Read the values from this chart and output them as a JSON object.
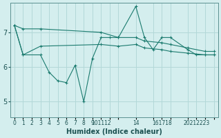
{
  "xlabel": "Humidex (Indice chaleur)",
  "bg_color": "#d4eeee",
  "grid_color": "#b2d8d8",
  "line_color": "#1a7a6e",
  "yticks": [
    5,
    6,
    7
  ],
  "ylim": [
    4.55,
    7.85
  ],
  "xlim": [
    -0.5,
    23.5
  ],
  "line1_x": [
    0,
    1,
    3,
    4,
    5,
    6,
    7,
    8,
    9,
    10,
    11,
    12,
    14,
    15,
    16,
    17,
    18,
    20,
    21,
    22,
    23
  ],
  "line1_y": [
    7.2,
    6.35,
    6.35,
    5.85,
    5.6,
    5.55,
    6.05,
    5.0,
    6.25,
    6.85,
    6.85,
    6.85,
    7.75,
    6.85,
    6.5,
    6.85,
    6.85,
    6.5,
    6.35,
    6.35,
    6.35
  ],
  "line2_x": [
    0,
    1,
    3,
    10,
    12,
    14,
    15,
    17,
    18,
    20,
    22,
    23
  ],
  "line2_y": [
    7.2,
    7.1,
    7.1,
    7.0,
    6.85,
    6.85,
    6.75,
    6.7,
    6.65,
    6.55,
    6.45,
    6.45
  ],
  "line3_x": [
    0,
    1,
    3,
    10,
    12,
    14,
    15,
    17,
    18,
    20,
    22,
    23
  ],
  "line3_y": [
    7.2,
    6.35,
    6.6,
    6.65,
    6.6,
    6.65,
    6.55,
    6.5,
    6.45,
    6.4,
    6.35,
    6.35
  ],
  "xtick_positions": [
    0,
    1,
    2,
    3,
    4,
    5,
    6,
    7,
    8,
    9,
    10,
    11,
    12,
    14,
    16,
    17,
    18,
    20,
    21,
    22,
    23
  ],
  "xtick_labels": [
    "0",
    "1",
    "2",
    "3",
    "4",
    "5",
    "6",
    "7",
    "8",
    "9",
    "101112",
    "",
    "",
    "14",
    "",
    "161718",
    "",
    "",
    "20212223",
    "",
    ""
  ]
}
